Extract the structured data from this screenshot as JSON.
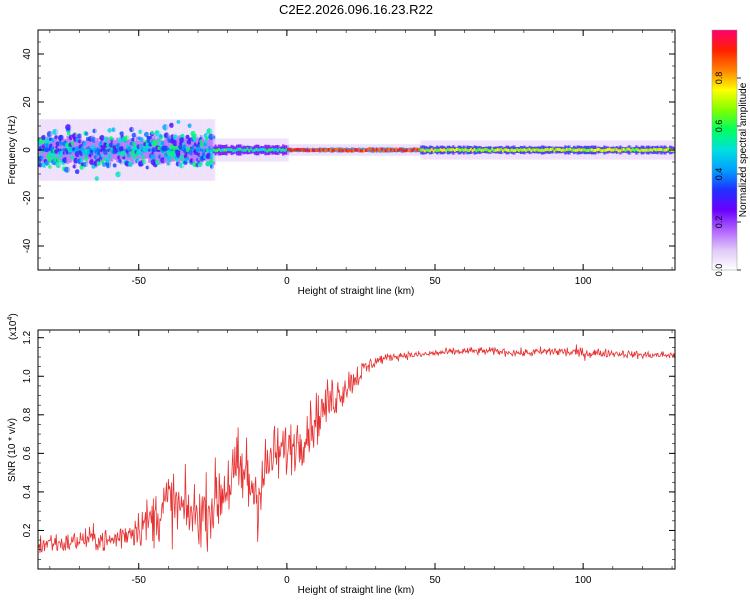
{
  "title": "C2E2.2026.096.16.23.R22",
  "colors": {
    "snr_line": "#e83232",
    "colormap": [
      "#ffffff",
      "#e0c8f8",
      "#b060ff",
      "#6a00ff",
      "#2030ff",
      "#00a0ff",
      "#00e0e0",
      "#00ff60",
      "#80ff00",
      "#ffff00",
      "#ff8000",
      "#ff2000",
      "#ff0070"
    ]
  },
  "chart_data": [
    {
      "type": "heatmap",
      "xlabel": "Height of straight line (km)",
      "ylabel": "Frequency (Hz)",
      "xlim": [
        -84,
        131
      ],
      "ylim": [
        -50,
        50
      ],
      "xticks": [
        -50,
        0,
        50,
        100
      ],
      "yticks": [
        -40,
        -20,
        0,
        20,
        40
      ],
      "xtick_labels": [
        "-50",
        "0",
        "50",
        "100"
      ],
      "ytick_labels": [
        "-40",
        "-20",
        "0",
        "20",
        "40"
      ],
      "grid": false,
      "description_of_structure": [
        {
          "x_range": [
            -84,
            -25
          ],
          "freq_center": 0,
          "freq_spread": 8,
          "amplitude": 0.35
        },
        {
          "x_range": [
            -25,
            0
          ],
          "freq_center": 0,
          "freq_spread": 3,
          "amplitude": 0.55
        },
        {
          "x_range": [
            0,
            45
          ],
          "freq_center": 0,
          "freq_spread": 1.5,
          "amplitude": 0.9
        },
        {
          "x_range": [
            45,
            131
          ],
          "freq_center": 0,
          "freq_spread": 2.5,
          "amplitude": 0.7
        }
      ],
      "colorbar": {
        "label": "Normalized spectral amplitude",
        "ticks": [
          0.0,
          0.2,
          0.4,
          0.6,
          0.8
        ],
        "tick_labels": [
          "0.0",
          "0.2",
          "0.4",
          "0.6",
          "0.8"
        ],
        "range": [
          0,
          1
        ]
      }
    },
    {
      "type": "line",
      "xlabel": "Height of straight line (km)",
      "ylabel": "SNR (10 * v/v)",
      "multiplier_label": "(x10",
      "multiplier_exp": "4",
      "multiplier_close": ")",
      "xlim": [
        -84,
        131
      ],
      "ylim": [
        0.0,
        1.24
      ],
      "xticks": [
        -50,
        0,
        50,
        100
      ],
      "yticks": [
        0.2,
        0.4,
        0.6,
        0.8,
        1.0,
        1.2
      ],
      "xtick_labels": [
        "-50",
        "0",
        "50",
        "100"
      ],
      "ytick_labels": [
        "0.2",
        "0.4",
        "0.6",
        "0.8",
        "1.0",
        "1.2"
      ],
      "grid": false,
      "series": [
        {
          "x": [
            -84,
            -80,
            -75,
            -70,
            -65,
            -60,
            -55,
            -50,
            -45,
            -40,
            -35,
            -30,
            -25,
            -20,
            -15,
            -10,
            -5,
            0,
            5,
            10,
            15,
            20,
            25,
            30,
            35,
            40,
            45,
            50,
            60,
            70,
            80,
            90,
            100,
            110,
            120,
            131
          ],
          "y": [
            0.12,
            0.14,
            0.13,
            0.15,
            0.16,
            0.14,
            0.18,
            0.22,
            0.26,
            0.35,
            0.3,
            0.28,
            0.33,
            0.45,
            0.5,
            0.4,
            0.58,
            0.62,
            0.68,
            0.78,
            0.88,
            0.95,
            1.02,
            1.08,
            1.1,
            1.11,
            1.11,
            1.12,
            1.13,
            1.13,
            1.12,
            1.13,
            1.12,
            1.12,
            1.11,
            1.11
          ],
          "noise": [
            0.06,
            0.06,
            0.05,
            0.06,
            0.06,
            0.07,
            0.08,
            0.1,
            0.14,
            0.18,
            0.17,
            0.16,
            0.18,
            0.22,
            0.25,
            0.24,
            0.16,
            0.14,
            0.14,
            0.13,
            0.12,
            0.09,
            0.06,
            0.03,
            0.02,
            0.02,
            0.02,
            0.02,
            0.02,
            0.02,
            0.02,
            0.03,
            0.03,
            0.02,
            0.02,
            0.02
          ]
        }
      ]
    }
  ]
}
